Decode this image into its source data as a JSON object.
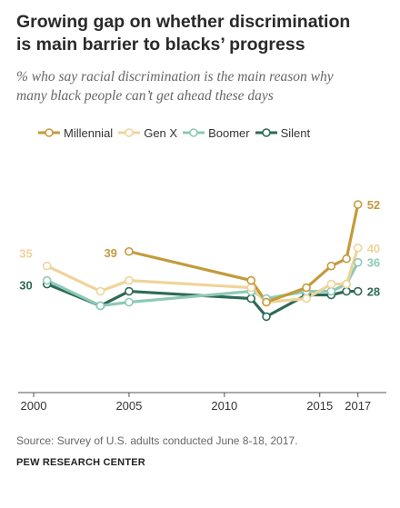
{
  "header": {
    "title_line1": "Growing gap on whether discrimination",
    "title_line2": "is main barrier to blacks’ progress",
    "subtitle_line1": "% who say racial discrimination is the main reason why",
    "subtitle_line2": "many black people can’t get ahead these days"
  },
  "chart_data": {
    "type": "line",
    "title": "Growing gap on whether discrimination is main barrier to blacks’ progress",
    "subtitle": "% who say racial discrimination is the main reason why many black people can’t get ahead these days",
    "xlabel": "",
    "ylabel": "",
    "x_ticks": [
      "2000",
      "2005",
      "2010",
      "2015",
      "2017"
    ],
    "xlim": [
      2000,
      2017.3
    ],
    "ylim": [
      0,
      56
    ],
    "grid": false,
    "legend_position": "top",
    "series": [
      {
        "name": "Millennial",
        "color": "#c49a3c",
        "points": [
          [
            2005,
            39
          ],
          [
            2011.4,
            31
          ],
          [
            2012.2,
            25
          ],
          [
            2014.3,
            29
          ],
          [
            2015.6,
            35
          ],
          [
            2016.4,
            37
          ],
          [
            2017,
            52
          ]
        ],
        "start_label": "39",
        "end_label": "52"
      },
      {
        "name": "Gen X",
        "color": "#efd49a",
        "points": [
          [
            2000.7,
            35
          ],
          [
            2003.5,
            28
          ],
          [
            2005,
            31
          ],
          [
            2011.4,
            29
          ],
          [
            2012.2,
            25
          ],
          [
            2014.3,
            26
          ],
          [
            2015.6,
            30
          ],
          [
            2016.4,
            30
          ],
          [
            2017,
            40
          ]
        ],
        "start_label": "35",
        "end_label": "40"
      },
      {
        "name": "Boomer",
        "color": "#8ec9b8",
        "points": [
          [
            2000.7,
            31
          ],
          [
            2003.5,
            24
          ],
          [
            2005,
            25
          ],
          [
            2011.4,
            28
          ],
          [
            2012.2,
            26
          ],
          [
            2014.3,
            28
          ],
          [
            2015.6,
            28
          ],
          [
            2016.4,
            30
          ],
          [
            2017,
            36
          ]
        ],
        "end_label": "36"
      },
      {
        "name": "Silent",
        "color": "#2f6a57",
        "points": [
          [
            2000.7,
            30
          ],
          [
            2003.5,
            24
          ],
          [
            2005,
            28
          ],
          [
            2011.4,
            26
          ],
          [
            2012.2,
            21
          ],
          [
            2014.3,
            27
          ],
          [
            2015.6,
            27
          ],
          [
            2016.4,
            28
          ],
          [
            2017,
            28
          ]
        ],
        "start_label": "30",
        "end_label": "28"
      }
    ]
  },
  "footer": {
    "source": "Source: Survey of U.S. adults conducted June 8-18, 2017.",
    "brand": "PEW RESEARCH CENTER"
  }
}
